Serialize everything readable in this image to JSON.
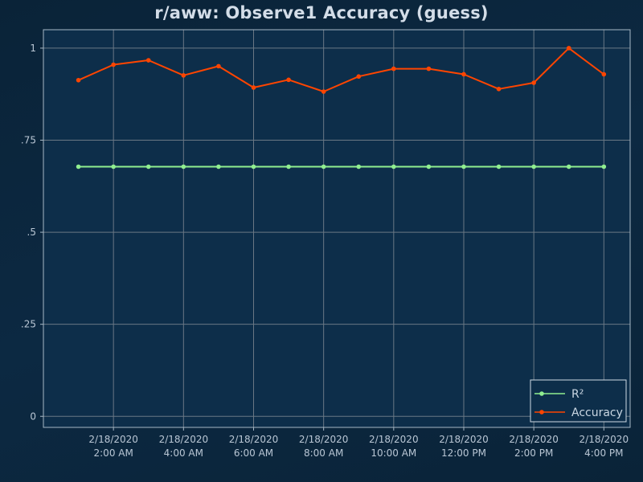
{
  "chart_data": {
    "type": "line",
    "title": "r/aww: Observe1 Accuracy (guess)",
    "xlabel": "",
    "ylabel": "",
    "x": [
      "2020-02-18T01:00",
      "2020-02-18T02:00",
      "2020-02-18T03:00",
      "2020-02-18T04:00",
      "2020-02-18T05:00",
      "2020-02-18T06:00",
      "2020-02-18T07:00",
      "2020-02-18T08:00",
      "2020-02-18T09:00",
      "2020-02-18T10:00",
      "2020-02-18T11:00",
      "2020-02-18T12:00",
      "2020-02-18T13:00",
      "2020-02-18T14:00",
      "2020-02-18T15:00",
      "2020-02-18T16:00"
    ],
    "x_ticks": [
      {
        "x": "2020-02-18T02:00",
        "date": "2/18/2020",
        "time": "2:00 AM"
      },
      {
        "x": "2020-02-18T04:00",
        "date": "2/18/2020",
        "time": "4:00 AM"
      },
      {
        "x": "2020-02-18T06:00",
        "date": "2/18/2020",
        "time": "6:00 AM"
      },
      {
        "x": "2020-02-18T08:00",
        "date": "2/18/2020",
        "time": "8:00 AM"
      },
      {
        "x": "2020-02-18T10:00",
        "date": "2/18/2020",
        "time": "10:00 AM"
      },
      {
        "x": "2020-02-18T12:00",
        "date": "2/18/2020",
        "time": "12:00 PM"
      },
      {
        "x": "2020-02-18T14:00",
        "date": "2/18/2020",
        "time": "2:00 PM"
      },
      {
        "x": "2020-02-18T16:00",
        "date": "2/18/2020",
        "time": "4:00 PM"
      }
    ],
    "xlim": [
      "2020-02-18T00:00",
      "2020-02-18T16:45"
    ],
    "ylim": [
      -0.03,
      1.05
    ],
    "y_ticks": [
      {
        "value": 1,
        "label": "1"
      },
      {
        "value": 0.75,
        "label": ".75"
      },
      {
        "value": 0.5,
        "label": ".5"
      },
      {
        "value": 0.25,
        "label": ".25"
      },
      {
        "value": 0,
        "label": "0"
      }
    ],
    "grid": true,
    "legend_position": "bottom-right",
    "series": [
      {
        "name": "R²",
        "color": "#90ee90",
        "values": [
          0.678,
          0.678,
          0.678,
          0.678,
          0.678,
          0.678,
          0.678,
          0.678,
          0.678,
          0.678,
          0.678,
          0.678,
          0.678,
          0.678,
          0.678,
          0.678
        ]
      },
      {
        "name": "Accuracy",
        "color": "#ff4500",
        "values": [
          0.913,
          0.955,
          0.967,
          0.926,
          0.951,
          0.893,
          0.914,
          0.882,
          0.923,
          0.944,
          0.944,
          0.929,
          0.889,
          0.906,
          1.0,
          0.929
        ]
      }
    ]
  },
  "colors": {
    "background": "#0b2740",
    "plot_background": "#0d2e4a",
    "grid": "#6a7885",
    "frame": "#a7b8c6",
    "text": "#b9c6d4"
  }
}
